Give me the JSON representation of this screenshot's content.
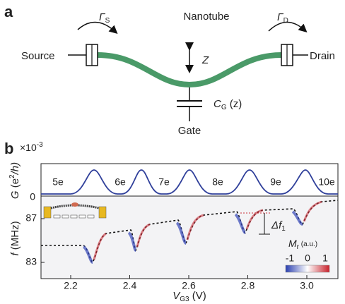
{
  "panel_a": {
    "label": "a",
    "gamma_s": {
      "symbol": "Γ",
      "sub": "S"
    },
    "gamma_d": {
      "symbol": "Γ",
      "sub": "D"
    },
    "nanotube": "Nanotube",
    "source": "Source",
    "drain": "Drain",
    "z": "Z",
    "capacitance": {
      "symbol": "C",
      "sub": "G",
      "suffix": " (z)"
    },
    "gate": "Gate"
  },
  "panel_b": {
    "label": "b",
    "scale": {
      "prefix": "×10",
      "exponent": "-3"
    },
    "conductance_axis": {
      "symbol": "G",
      "open": " (e",
      "exp": "2",
      "close": "/h)",
      "ticks": [
        "0"
      ]
    },
    "charge_states": [
      "5e",
      "6e",
      "7e",
      "8e",
      "9e",
      "10e"
    ],
    "frequency_axis": {
      "symbol": "f",
      "unit": " (MHz)",
      "ticks": [
        "87",
        "83"
      ]
    },
    "x_axis": {
      "symbol": "V",
      "sub": "G3",
      "unit": " (V)",
      "ticks": [
        "2.2",
        "2.4",
        "2.6",
        "2.8",
        "3.0"
      ]
    },
    "delta_f": {
      "symbol": "Δf",
      "sub": "1"
    },
    "colorbar": {
      "symbol": "M",
      "sub": "r",
      "unit": " (a.u.)",
      "ticks": [
        "-1",
        "0",
        "1"
      ]
    }
  }
}
